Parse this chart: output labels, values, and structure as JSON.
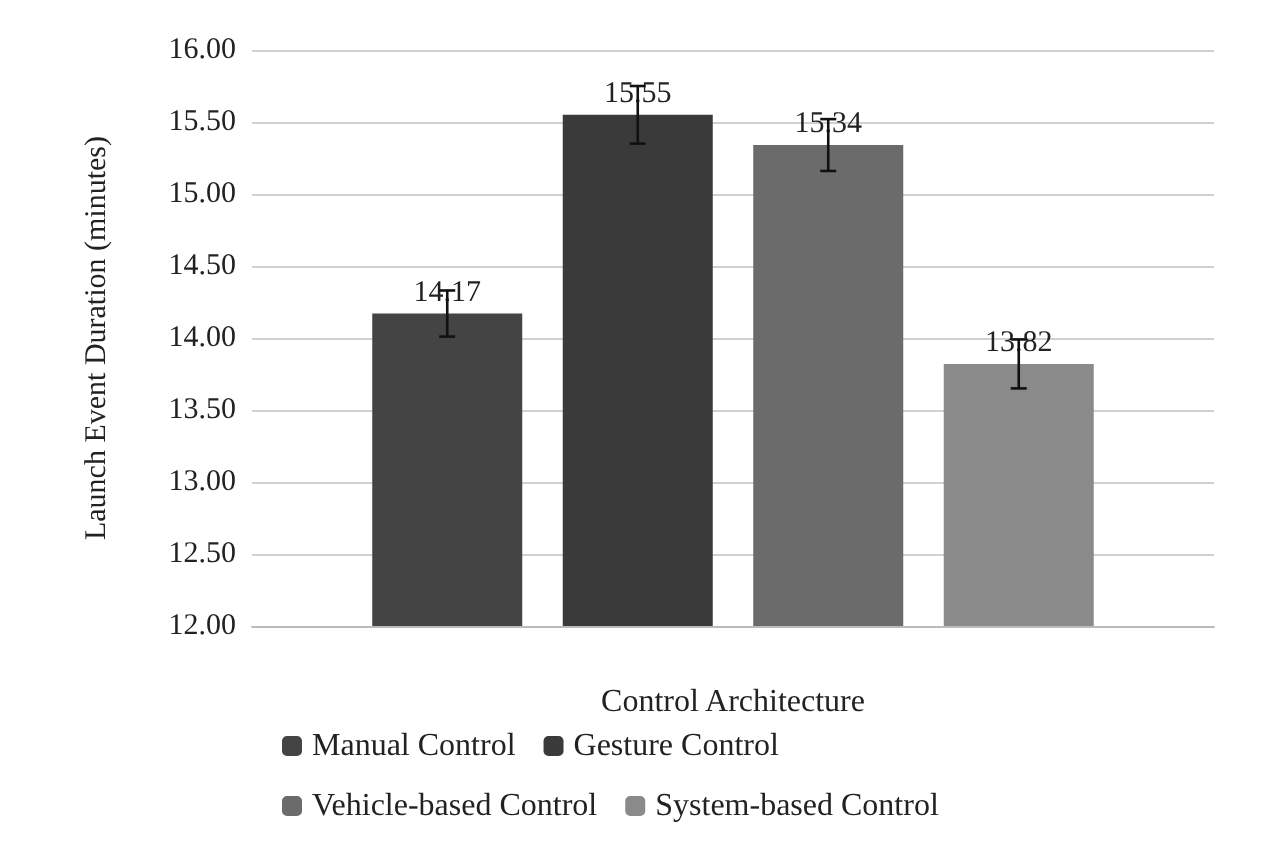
{
  "chart_data": {
    "type": "bar",
    "xlabel": "Control Architecture",
    "ylabel": "Launch Event Duration (minutes)",
    "categories": [
      null
    ],
    "series": [
      {
        "name": "Manual Control",
        "color": "#444444",
        "values": [
          14.17
        ],
        "errors": [
          0.16
        ]
      },
      {
        "name": "Gesture Control",
        "color": "#3a3a3a",
        "values": [
          15.55
        ],
        "errors": [
          0.2
        ]
      },
      {
        "name": "Vehicle-based Control",
        "color": "#6b6b6b",
        "values": [
          15.34
        ],
        "errors": [
          0.18
        ]
      },
      {
        "name": "System-based Control",
        "color": "#8a8a8a",
        "values": [
          13.82
        ],
        "errors": [
          0.17
        ]
      }
    ],
    "ylim": [
      12,
      16
    ],
    "yticks": [
      {
        "value": 12,
        "label": "12.00"
      },
      {
        "value": 12.5,
        "label": "12.50"
      },
      {
        "value": 13,
        "label": "13.00"
      },
      {
        "value": 13.5,
        "label": "13.50"
      },
      {
        "value": 14,
        "label": "14.00"
      },
      {
        "value": 14.5,
        "label": "14.50"
      },
      {
        "value": 15,
        "label": "15.00"
      },
      {
        "value": 15.5,
        "label": "15.50"
      },
      {
        "value": 16,
        "label": "16.00"
      }
    ],
    "grid": "y",
    "legend": "bottom",
    "data_labels": true
  }
}
